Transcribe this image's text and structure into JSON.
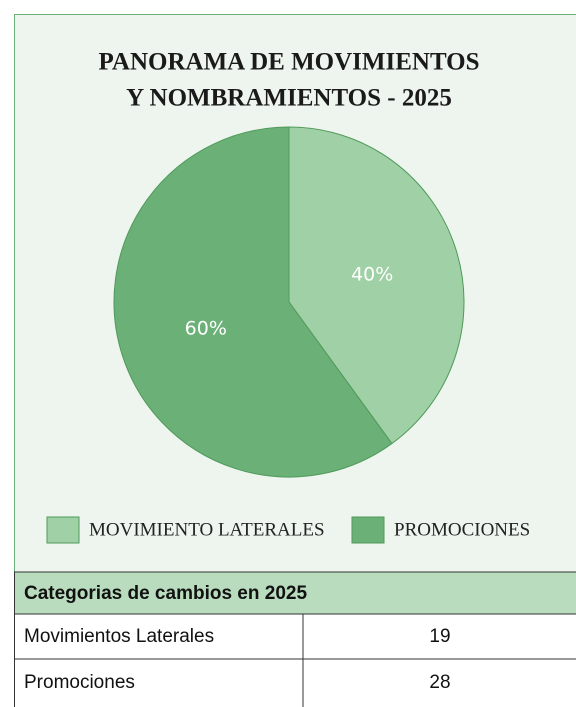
{
  "chart_data": {
    "type": "pie",
    "title": [
      "PANORAMA DE MOVIMIENTOS",
      "Y NOMBRAMIENTOS - 2025"
    ],
    "categories": [
      "MOVIMIENTO LATERALES",
      "PROMOCIONES"
    ],
    "values": [
      40,
      60
    ],
    "value_labels": [
      "40%",
      "60%"
    ],
    "colors": [
      "#a0d0a5",
      "#6bb077"
    ],
    "legend": "bottom"
  },
  "table": {
    "title": "Categorias de cambios en 2025",
    "rows": [
      [
        "Movimientos Laterales",
        19
      ],
      [
        "Promociones",
        28
      ]
    ]
  }
}
